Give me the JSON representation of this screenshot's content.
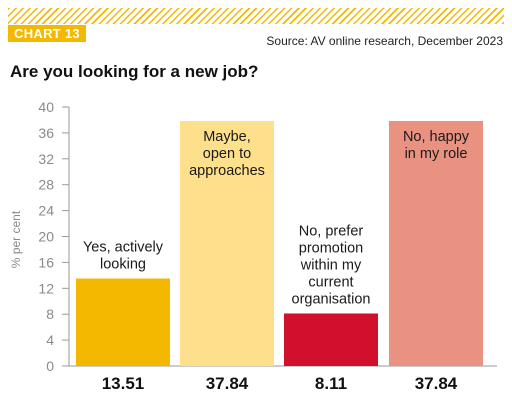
{
  "header": {
    "chart_tag": "CHART 13",
    "source": "Source: AV online research, December 2023"
  },
  "chart_data": {
    "type": "bar",
    "title": "Are you looking for a new job?",
    "ylabel": "% per cent",
    "ylim": [
      0,
      40
    ],
    "yticks": [
      0,
      4,
      8,
      12,
      16,
      20,
      24,
      28,
      32,
      36,
      40
    ],
    "grid": false,
    "categories": [
      [
        "Yes, actively",
        "looking"
      ],
      [
        "Maybe,",
        "open to",
        "approaches"
      ],
      [
        "No, prefer",
        "promotion",
        "within my",
        "current",
        "organisation"
      ],
      [
        "No, happy",
        "in my role"
      ]
    ],
    "values": [
      13.51,
      37.84,
      8.11,
      37.84
    ],
    "value_labels": [
      "13.51",
      "37.84",
      "8.11",
      "37.84"
    ],
    "colors": [
      "#f5b800",
      "#fddf8c",
      "#d0102c",
      "#ea9282"
    ]
  }
}
